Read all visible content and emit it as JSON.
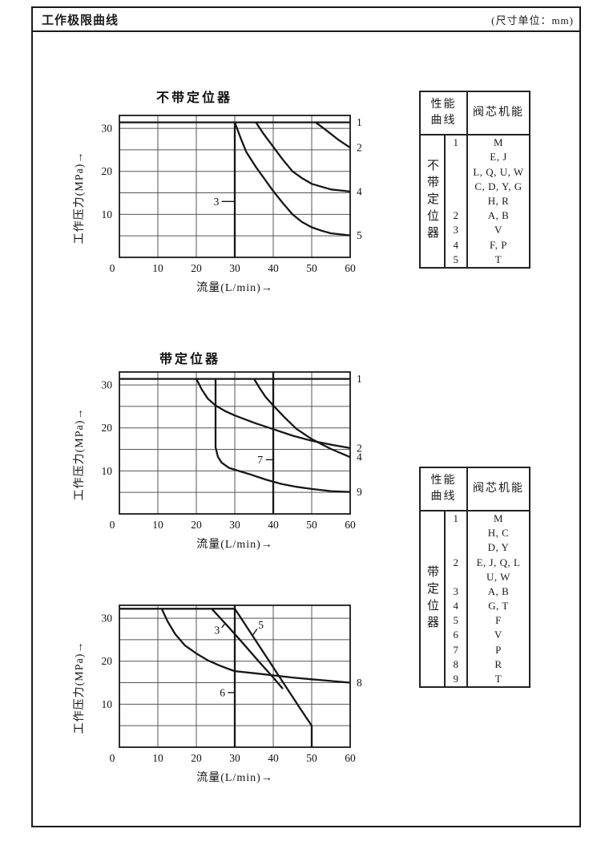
{
  "page": {
    "title": "工作极限曲线",
    "unit_note": "(尺寸单位：mm)"
  },
  "chart_data": [
    {
      "type": "line",
      "title": "不带定位器",
      "xlabel": "流量(L/min)→",
      "ylabel": "工作压力(MPa)→",
      "xlim": [
        0,
        60
      ],
      "ylim": [
        0,
        33
      ],
      "xticks": [
        0,
        10,
        20,
        30,
        40,
        50,
        60
      ],
      "yticks": [
        10,
        20,
        30
      ],
      "grid": {
        "x_step": 10,
        "y_step": 5,
        "on": true
      },
      "legend": "curve numbers labeled on plot",
      "series": [
        {
          "name": "1",
          "points": [
            [
              0,
              31.4
            ],
            [
              60,
              31.4
            ]
          ],
          "label": {
            "side": "right"
          }
        },
        {
          "name": "2",
          "points": [
            [
              51,
              31.4
            ],
            [
              54,
              29.4
            ],
            [
              57,
              27.3
            ],
            [
              60,
              25.5
            ]
          ],
          "label": {
            "side": "right"
          }
        },
        {
          "name": "3",
          "points": [
            [
              30,
              31.4
            ],
            [
              30,
              0
            ]
          ],
          "label": {
            "at": [
              25.2,
              13
            ],
            "leader": [
              [
                26.6,
                13
              ],
              [
                30,
                13
              ]
            ]
          }
        },
        {
          "name": "4",
          "points": [
            [
              35.5,
              31.4
            ],
            [
              37.5,
              28.7
            ],
            [
              40,
              25.7
            ],
            [
              42.5,
              22.7
            ],
            [
              45,
              20
            ],
            [
              47.5,
              18.4
            ],
            [
              50,
              17.1
            ],
            [
              55,
              15.8
            ],
            [
              60,
              15.3
            ]
          ],
          "label": {
            "side": "right"
          }
        },
        {
          "name": "5",
          "points": [
            [
              30,
              31.4
            ],
            [
              31.5,
              27.8
            ],
            [
              33,
              24.5
            ],
            [
              35.5,
              21
            ],
            [
              38,
              17.9
            ],
            [
              40,
              15.4
            ],
            [
              42.5,
              12.6
            ],
            [
              45,
              10
            ],
            [
              47.5,
              8.2
            ],
            [
              50,
              7
            ],
            [
              52.5,
              6.2
            ],
            [
              55,
              5.6
            ],
            [
              60,
              5.1
            ]
          ],
          "label": {
            "side": "right"
          }
        }
      ]
    },
    {
      "type": "line",
      "title": "带定位器",
      "xlabel": "流量(L/min)→",
      "ylabel": "工作压力(MPa)→",
      "xlim": [
        0,
        60
      ],
      "ylim": [
        0,
        33
      ],
      "xticks": [
        0,
        10,
        20,
        30,
        40,
        50,
        60
      ],
      "yticks": [
        10,
        20,
        30
      ],
      "grid": {
        "x_step": 10,
        "y_step": 5,
        "on": true
      },
      "legend": "curve numbers labeled on plot",
      "series": [
        {
          "name": "1",
          "points": [
            [
              0,
              31.4
            ],
            [
              60,
              31.4
            ]
          ],
          "label": {
            "side": "right"
          }
        },
        {
          "name": "2",
          "points": [
            [
              20,
              31.4
            ],
            [
              21.5,
              28.8
            ],
            [
              23,
              26.8
            ],
            [
              25,
              25.2
            ],
            [
              27.5,
              23.9
            ],
            [
              30,
              22.9
            ],
            [
              35,
              21.2
            ],
            [
              40,
              19.7
            ],
            [
              45,
              18.2
            ],
            [
              50,
              17
            ],
            [
              55,
              16.1
            ],
            [
              60,
              15.3
            ]
          ],
          "label": {
            "side": "right"
          }
        },
        {
          "name": "4",
          "points": [
            [
              35,
              31.4
            ],
            [
              36.5,
              29.2
            ],
            [
              38,
              27.2
            ],
            [
              40,
              25.2
            ],
            [
              43,
              22.4
            ],
            [
              46,
              19.8
            ],
            [
              50,
              17.4
            ],
            [
              55,
              15.1
            ],
            [
              60,
              13.2
            ]
          ],
          "label": {
            "side": "right"
          }
        },
        {
          "name": "7",
          "points": [
            [
              40,
              33
            ],
            [
              40,
              0
            ]
          ],
          "label": {
            "at": [
              36.6,
              12.6
            ],
            "leader": [
              [
                38.1,
                12.6
              ],
              [
                40,
                12.6
              ]
            ]
          }
        },
        {
          "name": "9",
          "points": [
            [
              25,
              31.4
            ],
            [
              25,
              15.5
            ],
            [
              25.6,
              13.3
            ],
            [
              26.6,
              11.9
            ],
            [
              28.5,
              10.7
            ],
            [
              31,
              10
            ],
            [
              34,
              9.2
            ],
            [
              38,
              8
            ],
            [
              42,
              7
            ],
            [
              46,
              6.3
            ],
            [
              50,
              5.8
            ],
            [
              55,
              5.3
            ],
            [
              60,
              5.1
            ]
          ],
          "label": {
            "side": "right"
          }
        }
      ]
    },
    {
      "type": "line",
      "title": "",
      "xlabel": "流量(L/min)→",
      "ylabel": "工作压力(MPa)→",
      "xlim": [
        0,
        60
      ],
      "ylim": [
        0,
        33
      ],
      "xticks": [
        0,
        10,
        20,
        30,
        40,
        50,
        60
      ],
      "yticks": [
        10,
        20,
        30
      ],
      "grid": {
        "x_step": 10,
        "y_step": 5,
        "on": true
      },
      "legend": "curve numbers labeled on plot",
      "series": [
        {
          "name": "3",
          "points": [
            [
              24,
              32.2
            ],
            [
              28,
              28.3
            ],
            [
              32,
              24.3
            ],
            [
              36,
              20.2
            ],
            [
              40,
              16.2
            ],
            [
              42.5,
              13.6
            ]
          ],
          "label": {
            "at": [
              25.4,
              27.2
            ],
            "leader": [
              [
                26.6,
                27.8
              ],
              [
                27.6,
                28.9
              ]
            ]
          }
        },
        {
          "name": "5",
          "points": [
            [
              0,
              32.2
            ],
            [
              30,
              32.2
            ],
            [
              32,
              29.5
            ],
            [
              35,
              25.4
            ],
            [
              38,
              21.3
            ],
            [
              41,
              17.2
            ],
            [
              44,
              13.1
            ],
            [
              47,
              9
            ],
            [
              50,
              5
            ],
            [
              50,
              0
            ]
          ],
          "label": {
            "at": [
              36.8,
              28.4
            ],
            "leader": [
              [
                35.8,
                27.5
              ],
              [
                34.6,
                26
              ]
            ]
          }
        },
        {
          "name": "6",
          "points": [
            [
              30,
              33
            ],
            [
              30,
              0
            ]
          ],
          "label": {
            "at": [
              26.8,
              12.7
            ],
            "leader": [
              [
                28.2,
                12.7
              ],
              [
                30,
                12.7
              ]
            ]
          }
        },
        {
          "name": "8",
          "points": [
            [
              11,
              32.2
            ],
            [
              12.5,
              29.3
            ],
            [
              14.5,
              26.3
            ],
            [
              17,
              23.7
            ],
            [
              20,
              21.8
            ],
            [
              23,
              20.2
            ],
            [
              26,
              19
            ],
            [
              29,
              18
            ],
            [
              30,
              17.7
            ],
            [
              35,
              17.2
            ],
            [
              40,
              16.7
            ],
            [
              45,
              16.2
            ],
            [
              50,
              15.8
            ],
            [
              55,
              15.4
            ],
            [
              60,
              15
            ]
          ],
          "label": {
            "side": "right"
          }
        }
      ]
    }
  ],
  "tables": [
    {
      "header": {
        "col_curve": "性能\n曲线",
        "col_function": "阀芯机能"
      },
      "group_label": "不带定位器",
      "rows": [
        {
          "num": "1",
          "funcs": "M"
        },
        {
          "num": "",
          "funcs": "E, J"
        },
        {
          "num": "",
          "funcs": "L, Q, U, W"
        },
        {
          "num": "",
          "funcs": "C, D, Y, G"
        },
        {
          "num": "",
          "funcs": "H, R"
        },
        {
          "num": "2",
          "funcs": "A, B"
        },
        {
          "num": "3",
          "funcs": "V"
        },
        {
          "num": "4",
          "funcs": "F, P"
        },
        {
          "num": "5",
          "funcs": "T"
        }
      ]
    },
    {
      "header": {
        "col_curve": "性能\n曲线",
        "col_function": "阀芯机能"
      },
      "group_label": "带定位器",
      "rows": [
        {
          "num": "1",
          "funcs": "M"
        },
        {
          "num": "",
          "funcs": "H, C"
        },
        {
          "num": "",
          "funcs": "D, Y"
        },
        {
          "num": "2",
          "funcs": "E, J, Q, L"
        },
        {
          "num": "",
          "funcs": "U, W"
        },
        {
          "num": "3",
          "funcs": "A, B"
        },
        {
          "num": "4",
          "funcs": "G, T"
        },
        {
          "num": "5",
          "funcs": "F"
        },
        {
          "num": "6",
          "funcs": "V"
        },
        {
          "num": "7",
          "funcs": "P"
        },
        {
          "num": "8",
          "funcs": "R"
        },
        {
          "num": "9",
          "funcs": "T"
        }
      ]
    }
  ]
}
